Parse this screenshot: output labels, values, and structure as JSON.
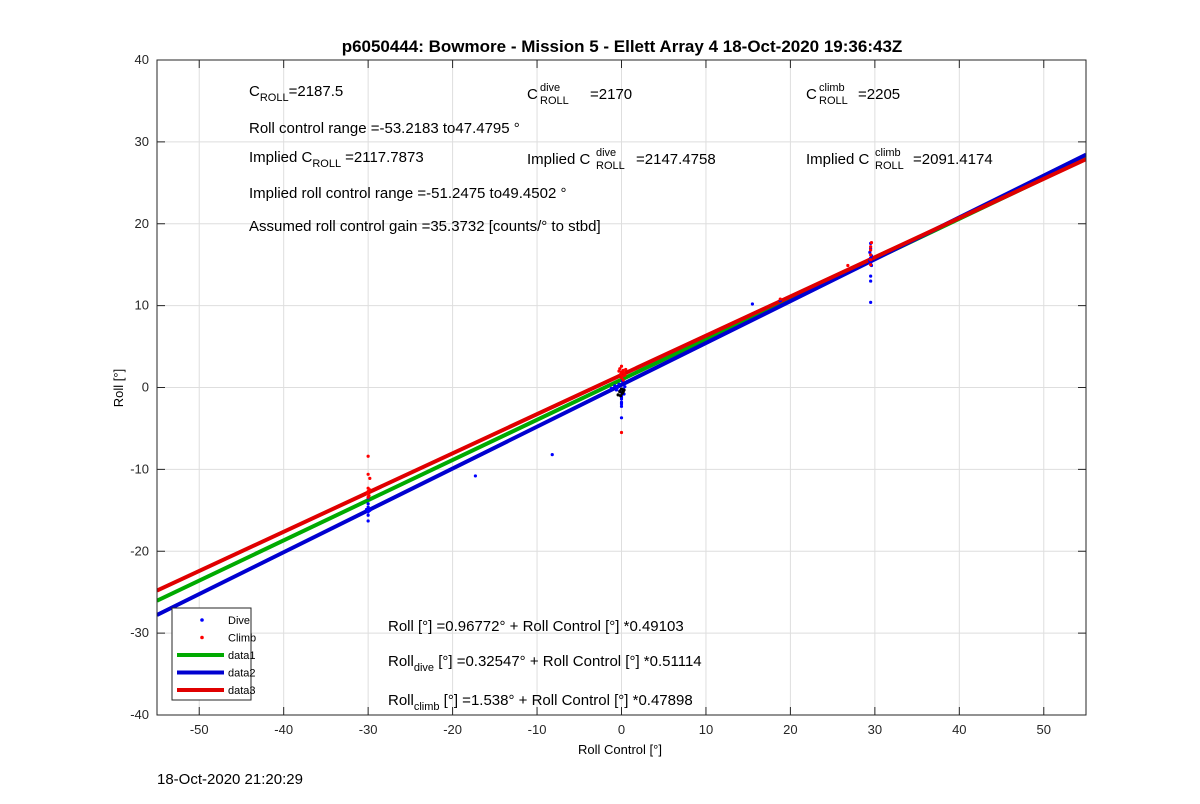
{
  "chart_data": {
    "type": "scatter",
    "title": "p6050444: Bowmore - Mission 5 - Ellett Array 4 18-Oct-2020 19:36:43Z",
    "xlabel": "Roll Control [°]",
    "ylabel": "Roll [°]",
    "xlim": [
      -55,
      55
    ],
    "ylim": [
      -40,
      40
    ],
    "xticks": [
      -50,
      -40,
      -30,
      -20,
      -10,
      0,
      10,
      20,
      30,
      40,
      50
    ],
    "yticks": [
      -40,
      -30,
      -20,
      -10,
      0,
      10,
      20,
      30,
      40
    ],
    "grid": true,
    "legend_position": "bottom-left",
    "annotations": {
      "c_roll": {
        "base": "C",
        "sub": "ROLL",
        "value": "=2187.5"
      },
      "c_roll_dive": {
        "base": "C",
        "sup": "dive",
        "sub": "ROLL",
        "value": "=2170"
      },
      "c_roll_climb": {
        "base": "C",
        "sup": "climb",
        "sub": "ROLL",
        "value": "=2205"
      },
      "roll_range": "Roll control range =-53.2183 to47.4795 °",
      "implied_c_roll": {
        "prefix": "Implied C",
        "sub": "ROLL",
        "value": "=2117.7873"
      },
      "implied_c_roll_dive": {
        "prefix": "Implied C",
        "sup": "dive",
        "sub": "ROLL",
        "value": "=2147.4758"
      },
      "implied_c_roll_climb": {
        "prefix": "Implied C",
        "sup": "climb",
        "sub": "ROLL",
        "value": "=2091.4174"
      },
      "implied_range": "Implied roll control range =-51.2475 to49.4502 °",
      "gain": "Assumed roll control gain =35.3732 [counts/° to stbd]",
      "fit_all": "Roll [°] =0.96772° + Roll Control [°] *0.49103",
      "fit_dive": {
        "base": "Roll",
        "sub": "dive",
        "rest": " [°] =0.32547° + Roll Control [°] *0.51114"
      },
      "fit_climb": {
        "base": "Roll",
        "sub": "climb",
        "rest": " [°] =1.538° + Roll Control [°] *0.47898"
      }
    },
    "series": [
      {
        "name": "Dive",
        "kind": "points",
        "color": "#0000ff",
        "points": [
          [
            -30,
            -14.6
          ],
          [
            -30,
            -15.2
          ],
          [
            -30,
            -15.6
          ],
          [
            -30,
            -16.3
          ],
          [
            -30.2,
            -14.9
          ],
          [
            -29.8,
            -15.0
          ],
          [
            -30,
            -13.5
          ],
          [
            -30,
            -14.2
          ],
          [
            -17.3,
            -10.8
          ],
          [
            -8.2,
            -8.2
          ],
          [
            -1.2,
            -0.1
          ],
          [
            -0.8,
            0.2
          ],
          [
            -0.5,
            0.0
          ],
          [
            -0.2,
            -0.4
          ],
          [
            0,
            -0.6
          ],
          [
            0,
            -1.0
          ],
          [
            0,
            -1.4
          ],
          [
            0,
            -1.8
          ],
          [
            0,
            -2.3
          ],
          [
            0,
            -3.7
          ],
          [
            0.2,
            -0.2
          ],
          [
            0.4,
            0.1
          ],
          [
            -0.3,
            0.4
          ],
          [
            0.1,
            0.8
          ],
          [
            -0.6,
            -0.3
          ],
          [
            0.3,
            -0.8
          ],
          [
            0,
            -1.2
          ],
          [
            0,
            -2.0
          ],
          [
            15.5,
            10.2
          ],
          [
            18.8,
            10.6
          ],
          [
            29.5,
            10.4
          ],
          [
            29.5,
            13.0
          ],
          [
            29.5,
            13.6
          ],
          [
            29.6,
            14.9
          ],
          [
            29.5,
            15.2
          ],
          [
            29.4,
            15.5
          ],
          [
            29.5,
            15.8
          ],
          [
            29.6,
            16.1
          ],
          [
            29.5,
            17.0
          ],
          [
            29.5,
            17.6
          ],
          [
            29.4,
            16.5
          ]
        ]
      },
      {
        "name": "Climb",
        "kind": "points",
        "color": "#ff0000",
        "points": [
          [
            -30,
            -8.4
          ],
          [
            -30,
            -10.6
          ],
          [
            -29.8,
            -11.1
          ],
          [
            -30,
            -12.3
          ],
          [
            -30,
            -12.7
          ],
          [
            -30.1,
            -13.0
          ],
          [
            -29.9,
            -13.2
          ],
          [
            -30,
            -13.4
          ],
          [
            -29.8,
            -12.5
          ],
          [
            0,
            -5.5
          ],
          [
            0,
            2.6
          ],
          [
            -0.2,
            2.3
          ],
          [
            0.2,
            2.1
          ],
          [
            0,
            1.9
          ],
          [
            -0.1,
            1.6
          ],
          [
            0.1,
            1.4
          ],
          [
            0.3,
            1.8
          ],
          [
            -0.3,
            2.0
          ],
          [
            0,
            1.2
          ],
          [
            0.2,
            0.9
          ],
          [
            0.4,
            1.5
          ],
          [
            0.5,
            2.2
          ],
          [
            18.8,
            10.8
          ],
          [
            26.8,
            14.9
          ],
          [
            29.5,
            15.0
          ],
          [
            29.5,
            15.6
          ],
          [
            29.5,
            16.2
          ],
          [
            29.5,
            16.8
          ],
          [
            29.5,
            17.2
          ],
          [
            29.6,
            17.7
          ]
        ]
      },
      {
        "name": "data1",
        "kind": "line",
        "color": "#00aa00",
        "intercept": 0.96772,
        "slope": 0.49103
      },
      {
        "name": "data2",
        "kind": "line",
        "color": "#0000d0",
        "intercept": 0.32547,
        "slope": 0.51114
      },
      {
        "name": "data3",
        "kind": "line",
        "color": "#e00000",
        "intercept": 1.538,
        "slope": 0.47898
      }
    ],
    "extra_points": {
      "name": "",
      "color": "#000000",
      "points": [
        [
          -0.2,
          -0.5
        ],
        [
          0.1,
          -0.7
        ],
        [
          -0.4,
          -0.9
        ],
        [
          0.3,
          -0.3
        ],
        [
          0,
          -0.2
        ],
        [
          -0.1,
          -1.0
        ],
        [
          0.2,
          -0.5
        ]
      ]
    }
  },
  "footer": {
    "timestamp": "18-Oct-2020 21:20:29"
  }
}
